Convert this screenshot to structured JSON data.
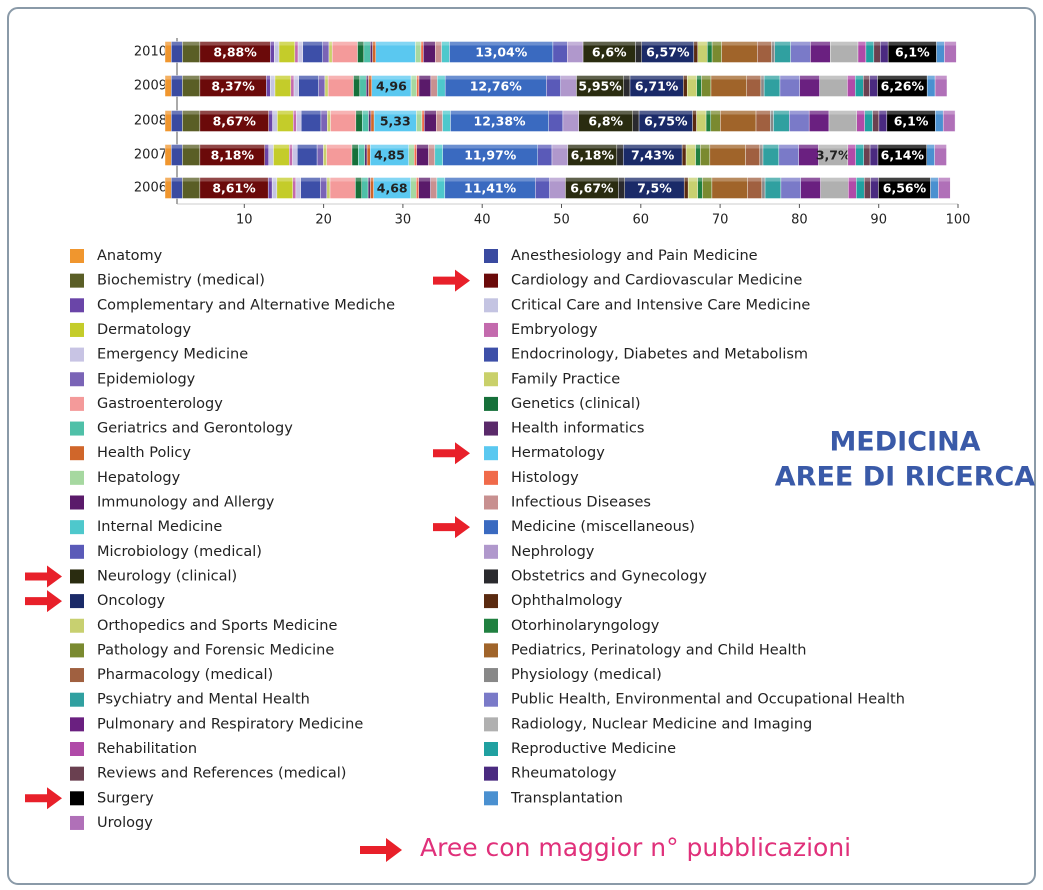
{
  "chart_data": {
    "type": "stacked-bar-horizontal",
    "title": [
      "MEDICINA",
      "AREE DI RICERCA"
    ],
    "footnote": "Aree con maggior n° pubblicazioni",
    "categories": [
      "2010",
      "2009",
      "2008",
      "2007",
      "2006"
    ],
    "xlim": [
      0,
      100
    ],
    "xticks": [
      10,
      20,
      30,
      40,
      50,
      60,
      70,
      80,
      90,
      100
    ],
    "series": [
      {
        "name": "Anatomy",
        "color": "#f0962e",
        "values": [
          0.8,
          0.8,
          0.8,
          0.8,
          0.8
        ]
      },
      {
        "name": "Anesthesiology and Pain Medicine",
        "color": "#3a4aa0",
        "values": [
          1.4,
          1.4,
          1.4,
          1.4,
          1.4
        ]
      },
      {
        "name": "Biochemistry (medical)",
        "color": "#5a5e26",
        "values": [
          2.2,
          2.2,
          2.2,
          2.2,
          2.2
        ]
      },
      {
        "name": "Cardiology and Cardiovascular Medicine",
        "color": "#6b0a0a",
        "highlight": true,
        "values": [
          8.88,
          8.37,
          8.67,
          8.18,
          8.61
        ],
        "value_labels": [
          "8,88%",
          "8,37%",
          "8,67%",
          "8,18%",
          "8,61%"
        ]
      },
      {
        "name": "Complementary and Alternative Mediche",
        "color": "#6a45a8",
        "values": [
          0.5,
          0.5,
          0.5,
          0.5,
          0.5
        ]
      },
      {
        "name": "Critical Care and Intensive Care Medicine",
        "color": "#c4c4e2",
        "values": [
          0.6,
          0.6,
          0.6,
          0.6,
          0.6
        ]
      },
      {
        "name": "Dermatology",
        "color": "#c4cc2a",
        "values": [
          2.0,
          2.0,
          2.0,
          2.0,
          2.0
        ]
      },
      {
        "name": "Embryology",
        "color": "#c36aad",
        "values": [
          0.4,
          0.4,
          0.4,
          0.4,
          0.4
        ]
      },
      {
        "name": "Emergency Medicine",
        "color": "#c8c4e4",
        "values": [
          0.6,
          0.6,
          0.6,
          0.6,
          0.6
        ]
      },
      {
        "name": "Endocrinology, Diabetes and Metabolism",
        "color": "#3d4fa8",
        "values": [
          2.5,
          2.5,
          2.5,
          2.5,
          2.5
        ]
      },
      {
        "name": "Epidemiology",
        "color": "#7a64b6",
        "values": [
          0.8,
          0.8,
          0.8,
          0.8,
          0.8
        ]
      },
      {
        "name": "Family Practice",
        "color": "#c9d06a",
        "values": [
          0.4,
          0.4,
          0.4,
          0.4,
          0.4
        ]
      },
      {
        "name": "Gastroenterology",
        "color": "#f49a9a",
        "values": [
          3.2,
          3.2,
          3.2,
          3.2,
          3.2
        ]
      },
      {
        "name": "Genetics (clinical)",
        "color": "#16703a",
        "values": [
          0.8,
          0.8,
          0.8,
          0.8,
          0.8
        ]
      },
      {
        "name": "Geriatrics and Gerontology",
        "color": "#4fc0a8",
        "values": [
          0.8,
          0.8,
          0.8,
          0.8,
          0.8
        ]
      },
      {
        "name": "Health informatics",
        "color": "#5a2a6a",
        "values": [
          0.3,
          0.3,
          0.3,
          0.3,
          0.3
        ]
      },
      {
        "name": "Health Policy",
        "color": "#d0662a",
        "values": [
          0.4,
          0.4,
          0.4,
          0.4,
          0.4
        ]
      },
      {
        "name": "Hermatology",
        "color": "#5ac8f0",
        "highlight": true,
        "values": [
          5.0,
          4.96,
          5.33,
          4.85,
          4.68
        ],
        "value_labels": [
          null,
          "4,96",
          "5,33",
          "4,85",
          "4,68"
        ]
      },
      {
        "name": "Hepatology",
        "color": "#a6d8a0",
        "values": [
          0.7,
          0.7,
          0.7,
          0.7,
          0.7
        ]
      },
      {
        "name": "Histology",
        "color": "#f06a4a",
        "values": [
          0.3,
          0.3,
          0.3,
          0.3,
          0.3
        ]
      },
      {
        "name": "Immunology and Allergy",
        "color": "#5a1a6a",
        "values": [
          1.5,
          1.5,
          1.5,
          1.5,
          1.5
        ]
      },
      {
        "name": "Infectious Diseases",
        "color": "#c89090",
        "values": [
          0.8,
          0.8,
          0.8,
          0.8,
          0.8
        ]
      },
      {
        "name": "Internal Medicine",
        "color": "#4ec8cc",
        "values": [
          1.0,
          1.0,
          1.0,
          1.0,
          1.0
        ]
      },
      {
        "name": "Medicine (miscellaneous)",
        "color": "#3a6ac0",
        "highlight": true,
        "values": [
          13.04,
          12.76,
          12.38,
          11.97,
          11.41
        ],
        "value_labels": [
          "13,04%",
          "12,76%",
          "12,38%",
          "11,97%",
          "11,41%"
        ]
      },
      {
        "name": "Microbiology (medical)",
        "color": "#5a5ab8",
        "values": [
          1.8,
          1.8,
          1.8,
          1.8,
          1.8
        ]
      },
      {
        "name": "Nephrology",
        "color": "#b098cc",
        "values": [
          2.0,
          2.0,
          2.0,
          2.0,
          2.0
        ]
      },
      {
        "name": "Neurology (clinical)",
        "color": "#2a2c10",
        "highlight": true,
        "values": [
          6.6,
          5.95,
          6.8,
          6.18,
          6.67
        ],
        "value_labels": [
          "6,6%",
          "5,95%",
          "6,8%",
          "6,18%",
          "6,67%"
        ]
      },
      {
        "name": "Obstetrics and Gynecology",
        "color": "#2a2a2e",
        "values": [
          0.8,
          0.8,
          0.8,
          0.8,
          0.8
        ]
      },
      {
        "name": "Oncology",
        "color": "#1a2a68",
        "highlight": true,
        "values": [
          6.57,
          6.71,
          6.75,
          7.43,
          7.5
        ],
        "value_labels": [
          "6,57%",
          "6,71%",
          "6,75%",
          "7,43%",
          "7,5%"
        ]
      },
      {
        "name": "Ophthalmology",
        "color": "#5a2a10",
        "values": [
          0.5,
          0.5,
          0.5,
          0.5,
          0.5
        ]
      },
      {
        "name": "Orthopedics and Sports Medicine",
        "color": "#c8d070",
        "values": [
          1.2,
          1.2,
          1.2,
          1.2,
          1.2
        ]
      },
      {
        "name": "Otorhinolaryngology",
        "color": "#208040",
        "values": [
          0.6,
          0.6,
          0.6,
          0.6,
          0.6
        ]
      },
      {
        "name": "Pathology and Forensic Medicine",
        "color": "#7a8a30",
        "values": [
          1.2,
          1.2,
          1.2,
          1.2,
          1.2
        ]
      },
      {
        "name": "Pediatrics, Perinatology and Child Health",
        "color": "#a0642a",
        "values": [
          4.5,
          4.5,
          4.5,
          4.5,
          4.5
        ]
      },
      {
        "name": "Pharmacology (medical)",
        "color": "#a06040",
        "values": [
          1.8,
          1.8,
          1.8,
          1.8,
          1.8
        ]
      },
      {
        "name": "Physiology (medical)",
        "color": "#888888",
        "values": [
          0.4,
          0.4,
          0.4,
          0.4,
          0.4
        ]
      },
      {
        "name": "Psychiatry and Mental Health",
        "color": "#30a0a0",
        "values": [
          2.0,
          2.0,
          2.0,
          2.0,
          2.0
        ]
      },
      {
        "name": "Public Health, Environmental and Occupational Health",
        "color": "#7a7ac8",
        "values": [
          2.5,
          2.5,
          2.5,
          2.5,
          2.5
        ]
      },
      {
        "name": "Pulmonary and Respiratory Medicine",
        "color": "#6a2080",
        "values": [
          2.5,
          2.5,
          2.5,
          2.5,
          2.5
        ]
      },
      {
        "name": "Radiology, Nuclear Medicine and Imaging",
        "color": "#b0b0b0",
        "values": [
          3.5,
          3.5,
          3.5,
          3.7,
          3.5
        ],
        "value_labels": [
          null,
          null,
          null,
          "3,7%",
          null
        ]
      },
      {
        "name": "Rehabilitation",
        "color": "#b04aa8",
        "values": [
          1.0,
          1.0,
          1.0,
          1.0,
          1.0
        ]
      },
      {
        "name": "Reproductive Medicine",
        "color": "#20a0a0",
        "values": [
          1.0,
          1.0,
          1.0,
          1.0,
          1.0
        ]
      },
      {
        "name": "Reviews and References (medical)",
        "color": "#6a4050",
        "values": [
          0.8,
          0.8,
          0.8,
          0.8,
          0.8
        ]
      },
      {
        "name": "Rheumatology",
        "color": "#4a2a80",
        "values": [
          1.0,
          1.0,
          1.0,
          1.0,
          1.0
        ]
      },
      {
        "name": "Surgery",
        "color": "#000000",
        "highlight": true,
        "values": [
          6.1,
          6.26,
          6.1,
          6.14,
          6.56
        ],
        "value_labels": [
          "6,1%",
          "6,26%",
          "6,1%",
          "6,14%",
          "6,56%"
        ]
      },
      {
        "name": "Transplantation",
        "color": "#4a90d0",
        "values": [
          1.0,
          1.0,
          1.0,
          1.0,
          1.0
        ]
      },
      {
        "name": "Urology",
        "color": "#b070b8",
        "values": [
          1.5,
          1.5,
          1.5,
          1.5,
          1.5
        ]
      }
    ]
  }
}
